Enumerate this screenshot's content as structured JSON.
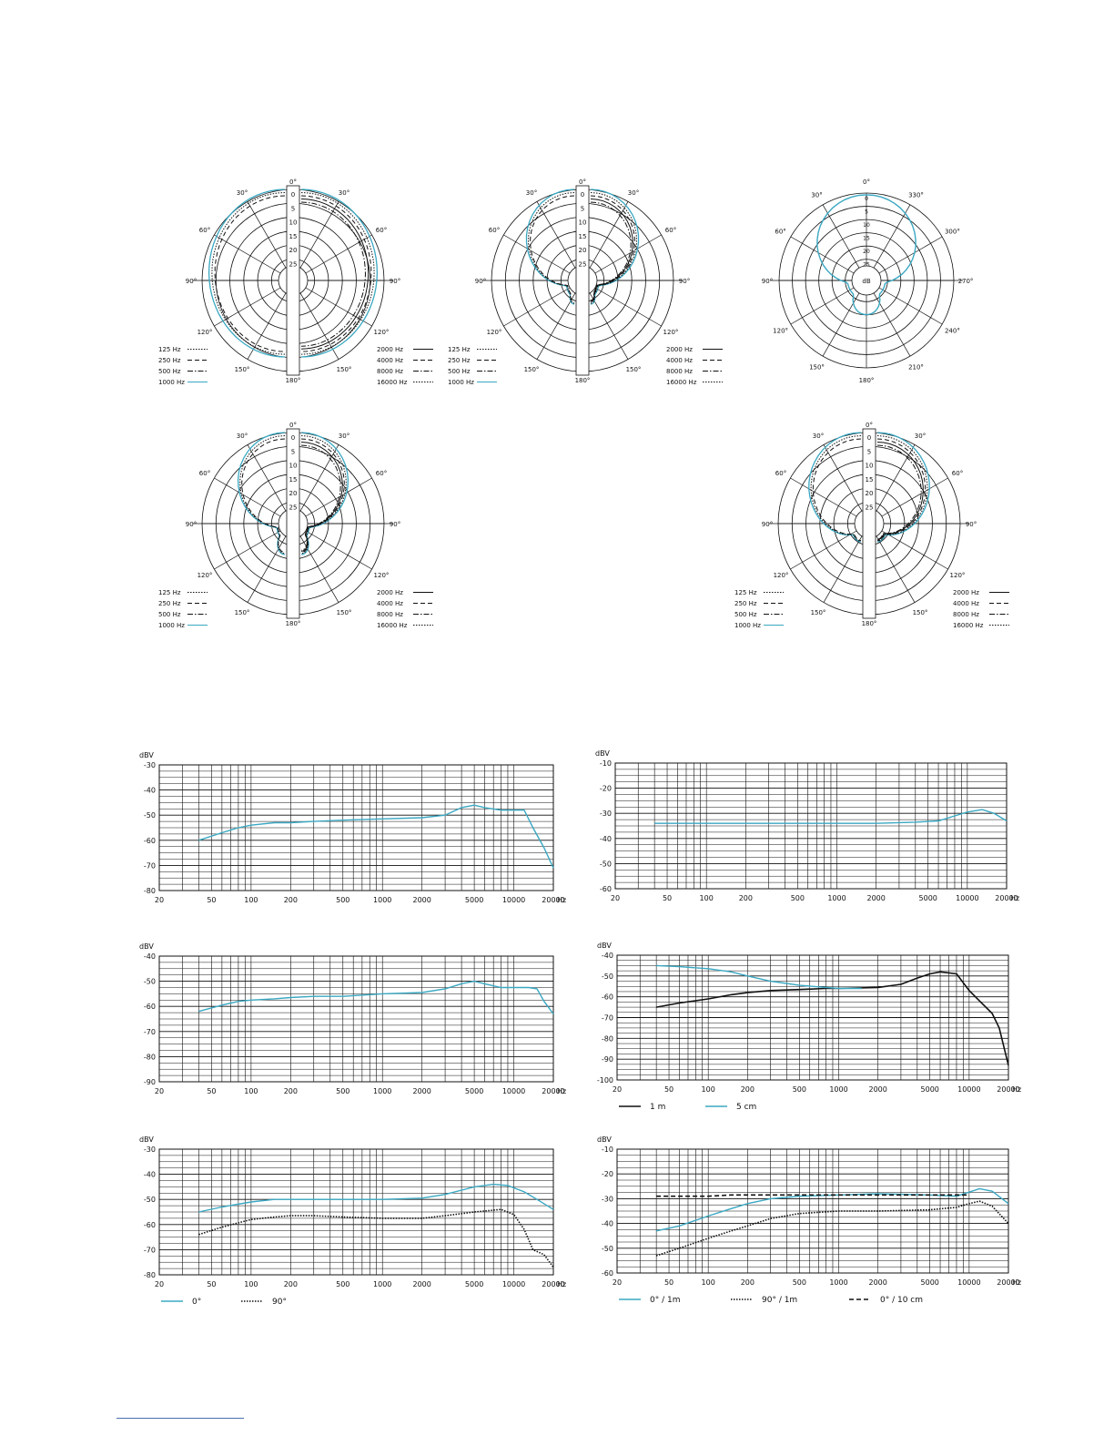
{
  "colors": {
    "accent": "#3aa8c2",
    "ink": "#111111"
  },
  "polar": [
    {
      "kind": "split",
      "center_label": "dB",
      "angle_labels_left": [
        "0°",
        "30°",
        "60°",
        "90°",
        "120°",
        "150°",
        "180°"
      ],
      "angle_labels_right": [
        "0°",
        "30°",
        "60°",
        "90°",
        "120°",
        "150°",
        "180°"
      ],
      "ring_labels": [
        "0",
        "5",
        "10",
        "15",
        "20",
        "25"
      ],
      "legend_left": [
        {
          "label": "125 Hz",
          "style": "dotted"
        },
        {
          "label": "250 Hz",
          "style": "dashed"
        },
        {
          "label": "500 Hz",
          "style": "dashdot"
        },
        {
          "label": "1000 Hz",
          "style": "accent"
        }
      ],
      "legend_right": [
        {
          "label": "2000 Hz",
          "style": "solid"
        },
        {
          "label": "4000 Hz",
          "style": "dashed"
        },
        {
          "label": "8000 Hz",
          "style": "dashdot"
        },
        {
          "label": "16000 Hz",
          "style": "dotted"
        }
      ],
      "shape": "cardioid-wide"
    },
    {
      "kind": "split",
      "center_label": "dB",
      "angle_labels_left": [
        "0°",
        "30°",
        "60°",
        "90°",
        "120°",
        "150°",
        "180°"
      ],
      "angle_labels_right": [
        "0°",
        "30°",
        "60°",
        "90°",
        "120°",
        "150°",
        "180°"
      ],
      "ring_labels": [
        "0",
        "5",
        "10",
        "15",
        "20",
        "25"
      ],
      "legend_left": [
        {
          "label": "125 Hz",
          "style": "dotted"
        },
        {
          "label": "250 Hz",
          "style": "dashed"
        },
        {
          "label": "500 Hz",
          "style": "dashdot"
        },
        {
          "label": "1000 Hz",
          "style": "accent"
        }
      ],
      "legend_right": [
        {
          "label": "2000 Hz",
          "style": "solid"
        },
        {
          "label": "4000 Hz",
          "style": "dashed"
        },
        {
          "label": "8000 Hz",
          "style": "dashdot"
        },
        {
          "label": "16000 Hz",
          "style": "dotted"
        }
      ],
      "shape": "supercardioid"
    },
    {
      "kind": "full",
      "center_label": "dB",
      "angle_labels": [
        "0°",
        "330°",
        "300°",
        "270°",
        "240°",
        "210°",
        "180°",
        "150°",
        "120°",
        "90°",
        "60°",
        "30°"
      ],
      "ring_labels": [
        "0",
        "5",
        "10",
        "15",
        "20",
        "25"
      ],
      "shape": "figure-single"
    },
    {
      "kind": "split",
      "center_label": "dB",
      "angle_labels_left": [
        "0°",
        "30°",
        "60°",
        "90°",
        "120°",
        "150°",
        "180°"
      ],
      "angle_labels_right": [
        "0°",
        "30°",
        "60°",
        "90°",
        "120°",
        "150°",
        "180°"
      ],
      "ring_labels": [
        "0",
        "5",
        "10",
        "15",
        "20",
        "25"
      ],
      "legend_left": [
        {
          "label": "125 Hz",
          "style": "dotted"
        },
        {
          "label": "250 Hz",
          "style": "dashed"
        },
        {
          "label": "500 Hz",
          "style": "dashdot"
        },
        {
          "label": "1000 Hz",
          "style": "accent"
        }
      ],
      "legend_right": [
        {
          "label": "2000 Hz",
          "style": "solid"
        },
        {
          "label": "4000 Hz",
          "style": "dashed"
        },
        {
          "label": "8000 Hz",
          "style": "dashdot"
        },
        {
          "label": "16000 Hz",
          "style": "dotted"
        }
      ],
      "shape": "supercardioid2"
    },
    {
      "kind": "split",
      "center_label": "dB",
      "angle_labels_left": [
        "0°",
        "30°",
        "60°",
        "90°",
        "120°",
        "150°",
        "180°"
      ],
      "angle_labels_right": [
        "0°",
        "30°",
        "60°",
        "90°",
        "120°",
        "150°",
        "180°"
      ],
      "ring_labels": [
        "0",
        "5",
        "10",
        "15",
        "20",
        "25"
      ],
      "legend_left": [
        {
          "label": "125 Hz",
          "style": "dotted"
        },
        {
          "label": "250 Hz",
          "style": "dashed"
        },
        {
          "label": "500 Hz",
          "style": "dashdot"
        },
        {
          "label": "1000 Hz",
          "style": "accent"
        }
      ],
      "legend_right": [
        {
          "label": "2000 Hz",
          "style": "solid"
        },
        {
          "label": "4000 Hz",
          "style": "dashed"
        },
        {
          "label": "8000 Hz",
          "style": "dashdot"
        },
        {
          "label": "16000 Hz",
          "style": "dotted"
        }
      ],
      "shape": "cardioid"
    }
  ],
  "chart_data": [
    {
      "type": "line",
      "ylabel": "dBV",
      "xunit": "Hz",
      "xscale": "log",
      "xlim": [
        20,
        20000
      ],
      "ylim": [
        -80,
        -30
      ],
      "yticks": [
        -30,
        -40,
        -50,
        -60,
        -70,
        -80
      ],
      "xticks": [
        20,
        50,
        100,
        200,
        500,
        1000,
        2000,
        5000,
        10000,
        20000
      ],
      "xticklabels": [
        "20",
        "50",
        "100",
        "200",
        "500",
        "1000",
        "2000",
        "5000",
        "10000",
        "20000"
      ],
      "grid": true,
      "series": [
        {
          "color": "accent",
          "style": "solid",
          "x": [
            40,
            60,
            80,
            100,
            150,
            200,
            300,
            500,
            1000,
            2000,
            3000,
            4000,
            5000,
            6000,
            8000,
            10000,
            12000,
            14000,
            17000,
            20000
          ],
          "y": [
            -60,
            -57,
            -55,
            -54,
            -53,
            -53,
            -52.5,
            -52,
            -51.5,
            -51,
            -50,
            -47,
            -46,
            -47,
            -48,
            -48,
            -48,
            -55,
            -63,
            -71
          ]
        }
      ]
    },
    {
      "type": "line",
      "ylabel": "dBV",
      "xunit": "Hz",
      "xscale": "log",
      "xlim": [
        20,
        20000
      ],
      "ylim": [
        -60,
        -10
      ],
      "yticks": [
        -10,
        -20,
        -30,
        -40,
        -50,
        -60
      ],
      "xticks": [
        20,
        50,
        100,
        200,
        500,
        1000,
        2000,
        5000,
        10000,
        20000
      ],
      "xticklabels": [
        "20",
        "50",
        "100",
        "200",
        "500",
        "1000",
        "2000",
        "5000",
        "10000",
        "20000"
      ],
      "grid": true,
      "series": [
        {
          "color": "accent",
          "style": "solid",
          "x": [
            40,
            100,
            200,
            500,
            1000,
            2000,
            4000,
            6000,
            8000,
            10000,
            13000,
            16000,
            20000
          ],
          "y": [
            -34,
            -34,
            -34,
            -34,
            -34,
            -34,
            -33.5,
            -33,
            -31,
            -29.5,
            -28.5,
            -30,
            -33
          ]
        }
      ]
    },
    {
      "type": "line",
      "ylabel": "dBV",
      "xunit": "Hz",
      "xscale": "log",
      "xlim": [
        20,
        20000
      ],
      "ylim": [
        -90,
        -40
      ],
      "yticks": [
        -40,
        -50,
        -60,
        -70,
        -80,
        -90
      ],
      "xticks": [
        20,
        50,
        100,
        200,
        500,
        1000,
        2000,
        5000,
        10000,
        20000
      ],
      "xticklabels": [
        "20",
        "50",
        "100",
        "200",
        "500",
        "1000",
        "2000",
        "5000",
        "10000",
        "20000"
      ],
      "grid": true,
      "series": [
        {
          "color": "accent",
          "style": "solid",
          "x": [
            40,
            60,
            80,
            100,
            150,
            200,
            300,
            500,
            1000,
            2000,
            3000,
            4000,
            5000,
            6000,
            8000,
            10000,
            13000,
            15000,
            17000,
            20000
          ],
          "y": [
            -62,
            -59.5,
            -58,
            -57.5,
            -57,
            -56.5,
            -56,
            -56,
            -55,
            -54.5,
            -53,
            -51,
            -50,
            -51,
            -52.5,
            -52.5,
            -52.5,
            -53,
            -58,
            -63
          ]
        }
      ]
    },
    {
      "type": "line",
      "ylabel": "dBV",
      "xunit": "Hz",
      "xscale": "log",
      "xlim": [
        20,
        20000
      ],
      "ylim": [
        -100,
        -40
      ],
      "yticks": [
        -40,
        -50,
        -60,
        -70,
        -80,
        -90,
        -100
      ],
      "xticks": [
        20,
        50,
        100,
        200,
        500,
        1000,
        2000,
        5000,
        10000,
        20000
      ],
      "xticklabels": [
        "20",
        "50",
        "100",
        "200",
        "500",
        "1000",
        "2000",
        "5000",
        "10000",
        "20000"
      ],
      "grid": true,
      "legend": [
        {
          "label": "1 m",
          "color": "ink",
          "style": "solid"
        },
        {
          "label": "5 cm",
          "color": "accent",
          "style": "solid"
        }
      ],
      "series": [
        {
          "name": "1 m",
          "color": "ink",
          "style": "solid",
          "x": [
            40,
            60,
            100,
            150,
            200,
            300,
            500,
            800,
            1000,
            2000,
            3000,
            4000,
            5000,
            6000,
            8000,
            10000,
            12000,
            15000,
            17000,
            20000
          ],
          "y": [
            -65,
            -63,
            -61,
            -59,
            -58,
            -57,
            -56.5,
            -56,
            -56,
            -55.5,
            -54,
            -51,
            -49,
            -48,
            -49,
            -57,
            -62,
            -68,
            -75,
            -93
          ]
        },
        {
          "name": "5 cm",
          "color": "accent",
          "style": "solid",
          "x": [
            40,
            60,
            100,
            150,
            200,
            300,
            500,
            800,
            1000,
            1500
          ],
          "y": [
            -45,
            -45.5,
            -46.5,
            -48,
            -50,
            -52.5,
            -54.5,
            -55.5,
            -56,
            -56
          ]
        }
      ]
    },
    {
      "type": "line",
      "ylabel": "dBV",
      "xunit": "Hz",
      "xscale": "log",
      "xlim": [
        20,
        20000
      ],
      "ylim": [
        -80,
        -30
      ],
      "yticks": [
        -30,
        -40,
        -50,
        -60,
        -70,
        -80
      ],
      "xticks": [
        20,
        50,
        100,
        200,
        500,
        1000,
        2000,
        5000,
        10000,
        20000
      ],
      "xticklabels": [
        "20",
        "50",
        "100",
        "200",
        "500",
        "1000",
        "2000",
        "5000",
        "10000",
        "20000"
      ],
      "grid": true,
      "legend": [
        {
          "label": "0°",
          "color": "accent",
          "style": "solid"
        },
        {
          "label": "90°",
          "color": "ink",
          "style": "dotted"
        }
      ],
      "series": [
        {
          "name": "0°",
          "color": "accent",
          "style": "solid",
          "x": [
            40,
            60,
            100,
            150,
            200,
            300,
            500,
            1000,
            2000,
            3000,
            5000,
            7000,
            9000,
            12000,
            15000,
            20000
          ],
          "y": [
            -55,
            -53,
            -51,
            -50,
            -50,
            -50,
            -50,
            -50,
            -49.5,
            -48,
            -45,
            -44,
            -44.5,
            -47,
            -50,
            -54
          ]
        },
        {
          "name": "90°",
          "color": "ink",
          "style": "dotted",
          "x": [
            40,
            60,
            100,
            150,
            200,
            300,
            500,
            1000,
            2000,
            3000,
            5000,
            8000,
            10000,
            12000,
            14000,
            17000,
            20000
          ],
          "y": [
            -64,
            -61,
            -58,
            -57,
            -56.5,
            -56.5,
            -57,
            -57.5,
            -57.5,
            -56.5,
            -55,
            -54,
            -56,
            -62,
            -70,
            -72,
            -77
          ]
        }
      ]
    },
    {
      "type": "line",
      "ylabel": "dBV",
      "xunit": "Hz",
      "xscale": "log",
      "xlim": [
        20,
        20000
      ],
      "ylim": [
        -60,
        -10
      ],
      "yticks": [
        -10,
        -20,
        -30,
        -40,
        -50,
        -60
      ],
      "xticks": [
        20,
        50,
        100,
        200,
        500,
        1000,
        2000,
        5000,
        10000,
        20000
      ],
      "xticklabels": [
        "20",
        "50",
        "100",
        "200",
        "500",
        "1000",
        "2000",
        "5000",
        "10000",
        "20000"
      ],
      "grid": true,
      "legend": [
        {
          "label": "0° / 1m",
          "color": "accent",
          "style": "solid"
        },
        {
          "label": "90° / 1m",
          "color": "ink",
          "style": "dotted"
        },
        {
          "label": "0° / 10 cm",
          "color": "ink",
          "style": "dashed"
        }
      ],
      "series": [
        {
          "name": "0° / 1m",
          "color": "accent",
          "style": "solid",
          "x": [
            40,
            60,
            100,
            150,
            200,
            300,
            500,
            1000,
            2000,
            5000,
            8000,
            12000,
            15000,
            20000
          ],
          "y": [
            -43,
            -41,
            -37,
            -34,
            -32,
            -30,
            -29,
            -28.5,
            -28,
            -28.5,
            -29,
            -26,
            -27,
            -32
          ]
        },
        {
          "name": "90° / 1m",
          "color": "ink",
          "style": "dotted",
          "x": [
            40,
            60,
            100,
            150,
            200,
            300,
            500,
            1000,
            2000,
            5000,
            8000,
            10000,
            12000,
            15000,
            20000
          ],
          "y": [
            -53,
            -50,
            -46,
            -43,
            -41,
            -38,
            -36,
            -35,
            -35,
            -34.5,
            -33.5,
            -32,
            -31,
            -33,
            -40
          ]
        },
        {
          "name": "0° / 10 cm",
          "color": "ink",
          "style": "dashed",
          "x": [
            40,
            60,
            100,
            150,
            200,
            300,
            500,
            1000,
            2000,
            5000,
            10000
          ],
          "y": [
            -29,
            -29,
            -29,
            -28.5,
            -28.5,
            -28.5,
            -28.5,
            -28.5,
            -28.5,
            -28.5,
            -28.5
          ]
        }
      ]
    }
  ]
}
